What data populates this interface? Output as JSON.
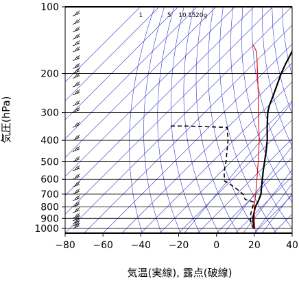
{
  "chart_data": {
    "type": "line",
    "subtype": "skew-t-log-p",
    "xlabel": "気温(実線), 露点(破線)",
    "ylabel": "気圧(hPa)",
    "xlim": [
      -80,
      40
    ],
    "ylim": [
      1050,
      100
    ],
    "y_scale": "log",
    "x_ticks": [
      "−80",
      "−60",
      "−40",
      "−20",
      "0",
      "20",
      "40"
    ],
    "x_tick_values": [
      -80,
      -60,
      -40,
      -20,
      0,
      20,
      40
    ],
    "y_ticks": [
      "100",
      "200",
      "300",
      "400",
      "500",
      "600",
      "700",
      "800",
      "900",
      "1000"
    ],
    "y_tick_values": [
      100,
      200,
      300,
      400,
      500,
      600,
      700,
      800,
      900,
      1000
    ],
    "mixing_ratio_labels": [
      "1",
      "5",
      "10",
      "15",
      "20g"
    ],
    "colors": {
      "temperature": "#000000",
      "dewpoint": "#000000",
      "parcel": "#e00000",
      "background_lines": "#3333cc",
      "isobars": "#000000"
    },
    "series": [
      {
        "name": "気温(実線)",
        "style": "solid",
        "points": [
          {
            "p": 1000,
            "t": 20.2
          },
          {
            "p": 950,
            "t": 16.8
          },
          {
            "p": 900,
            "t": 13.8
          },
          {
            "p": 850,
            "t": 11.4
          },
          {
            "p": 800,
            "t": 8.9
          },
          {
            "p": 750,
            "t": 7.2
          },
          {
            "p": 700,
            "t": 5.0
          },
          {
            "p": 650,
            "t": 1.4
          },
          {
            "p": 600,
            "t": -2.3
          },
          {
            "p": 550,
            "t": -6.4
          },
          {
            "p": 500,
            "t": -10.6
          },
          {
            "p": 450,
            "t": -15.3
          },
          {
            "p": 400,
            "t": -20.8
          },
          {
            "p": 350,
            "t": -27.8
          },
          {
            "p": 300,
            "t": -35.5
          },
          {
            "p": 280,
            "t": -38.3
          },
          {
            "p": 250,
            "t": -42.0
          },
          {
            "p": 200,
            "t": -49.5
          },
          {
            "p": 180,
            "t": -52.5
          },
          {
            "p": 160,
            "t": -55.5
          },
          {
            "p": 150,
            "t": -57.5
          },
          {
            "p": 130,
            "t": -60.0
          },
          {
            "p": 118,
            "t": -62.0
          },
          {
            "p": 114,
            "t": -61.0
          },
          {
            "p": 100,
            "t": -59.5
          }
        ]
      },
      {
        "name": "露点(破線)",
        "style": "dashed",
        "points": [
          {
            "p": 1000,
            "t": 19.5
          },
          {
            "p": 950,
            "t": 15.8
          },
          {
            "p": 900,
            "t": 12.3
          },
          {
            "p": 850,
            "t": 9.8
          },
          {
            "p": 800,
            "t": 7.5
          },
          {
            "p": 760,
            "t": 5.5
          },
          {
            "p": 740,
            "t": -0.5
          },
          {
            "p": 700,
            "t": -4.5
          },
          {
            "p": 650,
            "t": -13.0
          },
          {
            "p": 610,
            "t": -21.5
          },
          {
            "p": 550,
            "t": -27.0
          },
          {
            "p": 500,
            "t": -31.0
          },
          {
            "p": 450,
            "t": -36.0
          },
          {
            "p": 400,
            "t": -41.5
          },
          {
            "p": 350,
            "t": -49.0
          },
          {
            "p": 345,
            "t": -72.0
          },
          {
            "p": 345,
            "t": -80.0
          }
        ]
      },
      {
        "name": "parcel",
        "style": "solid",
        "points": [
          {
            "p": 1000,
            "t": 20.2
          },
          {
            "p": 900,
            "t": 14.6
          },
          {
            "p": 800,
            "t": 8.3
          },
          {
            "p": 700,
            "t": 2.2
          },
          {
            "p": 600,
            "t": -5.2
          },
          {
            "p": 500,
            "t": -14.0
          },
          {
            "p": 400,
            "t": -25.0
          },
          {
            "p": 300,
            "t": -40.5
          },
          {
            "p": 250,
            "t": -50.0
          },
          {
            "p": 200,
            "t": -62.0
          },
          {
            "p": 160,
            "t": -74.0
          },
          {
            "p": 148,
            "t": -80.0
          }
        ]
      }
    ],
    "wind_barb_pressures": [
      1000,
      975,
      950,
      925,
      900,
      850,
      800,
      750,
      700,
      650,
      600,
      550,
      500,
      450,
      400,
      350,
      300,
      280,
      250,
      230,
      210,
      200,
      190,
      175,
      160,
      150,
      140,
      130,
      120,
      110,
      100
    ]
  }
}
